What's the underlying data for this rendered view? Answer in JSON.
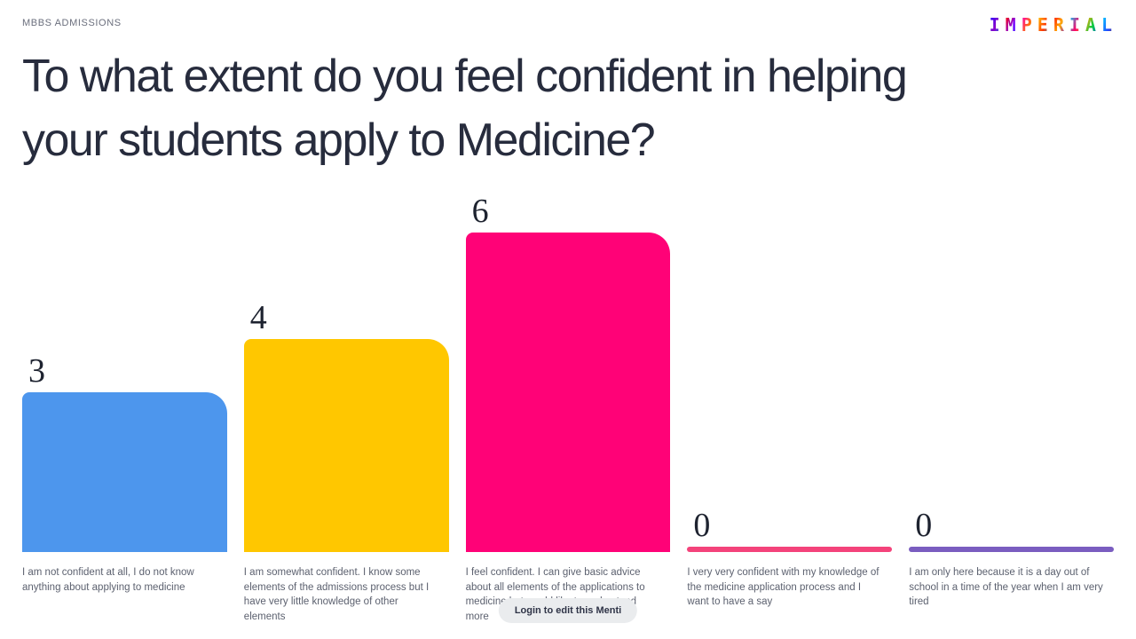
{
  "header": {
    "eyebrow": "MBBS ADMISSIONS",
    "logo_text": "IMPERIAL"
  },
  "title": "To what extent do you feel confident in helping your students apply to Medicine?",
  "footer": {
    "login_button_label": "Login to edit this Menti"
  },
  "colors": {
    "title_text": "#272C3D",
    "eyebrow_text": "#6B6F7D",
    "category_text": "#5C616F",
    "value_text": "#1E2330",
    "button_bg": "#EAECEE",
    "button_text": "#2F3447"
  },
  "chart_data": {
    "type": "bar",
    "title": "To what extent do you feel confident in helping your students apply to Medicine?",
    "categories": [
      "I am not confident at all, I do not know anything about applying to medicine",
      "I am somewhat confident. I know some elements of the admissions process but I have very little knowledge of other elements",
      "I feel confident. I can give basic advice about all elements of the applications to medicine but would like to understand more",
      "I very very confident with my knowledge of the medicine application process and I want to have a say",
      "I am only here because it is a day out of school in a time of the year when I am very tired"
    ],
    "values": [
      3,
      4,
      6,
      0,
      0
    ],
    "bar_colors": [
      "#4D96ED",
      "#FFC700",
      "#FF0277",
      "#F4437B",
      "#7A5DC0"
    ],
    "ylim": [
      0,
      6
    ],
    "xlabel": "",
    "ylabel": "",
    "grid": false,
    "legend": "none",
    "value_labels": "above-bar-left"
  }
}
